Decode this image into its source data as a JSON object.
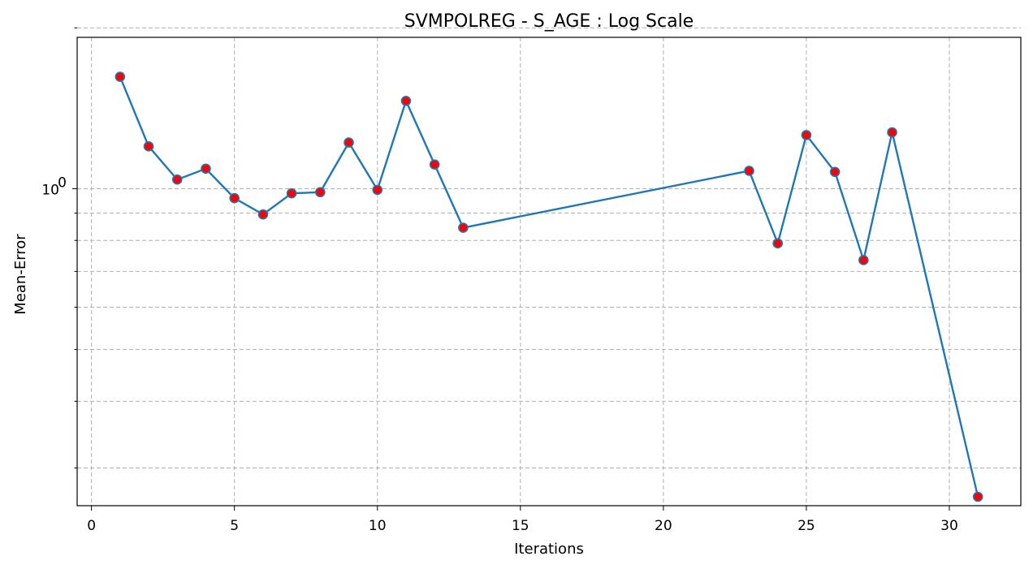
{
  "chart_data": {
    "type": "line",
    "title": "SVMPOLREG - S_AGE : Log Scale",
    "xlabel": "Iterations",
    "ylabel": "Mean-Error",
    "yscale": "log",
    "xlim": [
      -0.5,
      32.5
    ],
    "ylim": [
      0.255,
      1.92
    ],
    "x_ticks": [
      0,
      5,
      10,
      15,
      20,
      25,
      30
    ],
    "x_tick_labels": [
      "0",
      "5",
      "10",
      "15",
      "20",
      "25",
      "30"
    ],
    "y_major_ticks": [
      1
    ],
    "y_major_tick_labels": [
      "10^0"
    ],
    "y_minor_ticks": [
      0.3,
      0.4,
      0.5,
      0.6,
      0.7,
      0.8,
      0.9,
      2
    ],
    "grid": true,
    "series": [
      {
        "x": [
          1,
          2,
          3,
          4,
          5,
          6,
          7,
          8,
          9,
          10,
          11,
          12,
          13,
          23,
          24,
          25,
          26,
          27,
          28,
          31
        ],
        "values": [
          1.62,
          1.2,
          1.04,
          1.09,
          0.96,
          0.895,
          0.98,
          0.985,
          1.22,
          0.995,
          1.46,
          1.11,
          0.845,
          1.08,
          0.79,
          1.26,
          1.075,
          0.735,
          1.275,
          0.265
        ],
        "line_color": "#1f77b4",
        "marker_color": "#ff0000",
        "marker_edge_color": "#1f77b4"
      }
    ]
  }
}
